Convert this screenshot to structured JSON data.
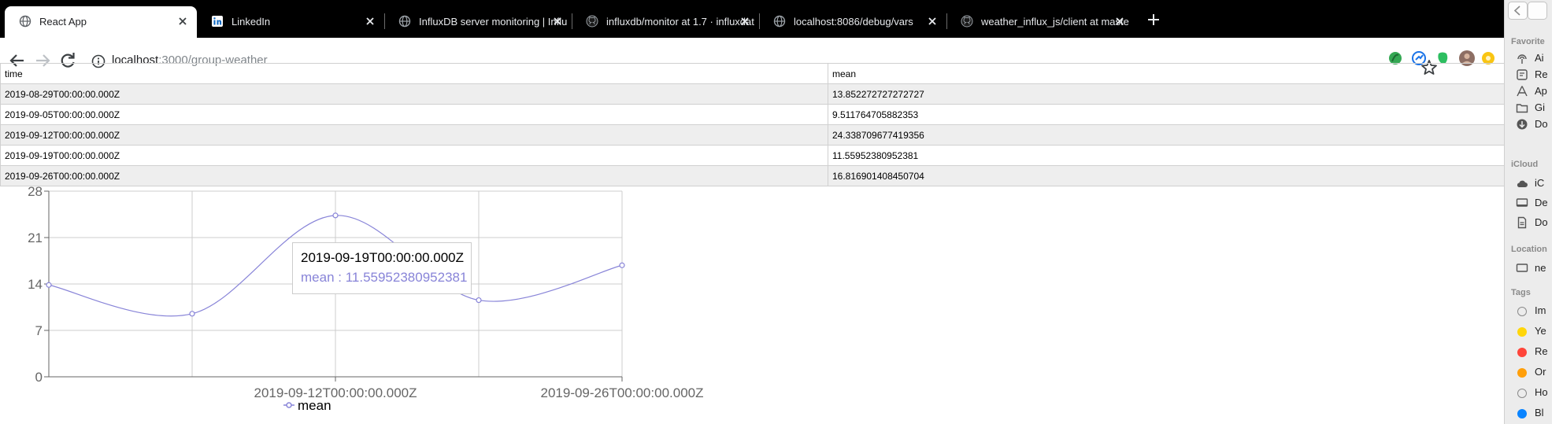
{
  "browser": {
    "tabs": [
      {
        "title": "React App",
        "active": true,
        "icon": "globe-icon"
      },
      {
        "title": "LinkedIn",
        "active": false,
        "icon": "linkedin-icon"
      },
      {
        "title": "InfluxDB server monitoring | Influ",
        "active": false,
        "icon": "globe-icon"
      },
      {
        "title": "influxdb/monitor at 1.7 · influxdat",
        "active": false,
        "icon": "github-icon"
      },
      {
        "title": "localhost:8086/debug/vars",
        "active": false,
        "icon": "globe-icon"
      },
      {
        "title": "weather_influx_js/client at maste",
        "active": false,
        "icon": "github-icon"
      }
    ],
    "url": {
      "host": "localhost",
      "path": ":3000/group-weather"
    }
  },
  "table": {
    "headers": [
      "time",
      "mean"
    ],
    "rows": [
      [
        "2019-08-29T00:00:00.000Z",
        "13.852272727272727"
      ],
      [
        "2019-09-05T00:00:00.000Z",
        "9.511764705882353"
      ],
      [
        "2019-09-12T00:00:00.000Z",
        "24.338709677419356"
      ],
      [
        "2019-09-19T00:00:00.000Z",
        "11.55952380952381"
      ],
      [
        "2019-09-26T00:00:00.000Z",
        "16.816901408450704"
      ]
    ]
  },
  "chart_data": {
    "type": "line",
    "x": [
      "2019-08-29T00:00:00.000Z",
      "2019-09-05T00:00:00.000Z",
      "2019-09-12T00:00:00.000Z",
      "2019-09-19T00:00:00.000Z",
      "2019-09-26T00:00:00.000Z"
    ],
    "series": [
      {
        "name": "mean",
        "values": [
          13.852272727272727,
          9.511764705882353,
          24.338709677419356,
          11.55952380952381,
          16.816901408450704
        ],
        "color": "#8884d8"
      }
    ],
    "xticks": [
      "2019-09-12T00:00:00.000Z",
      "2019-09-26T00:00:00.000Z"
    ],
    "yticks": [
      0,
      7,
      14,
      21,
      28
    ],
    "ylim": [
      0,
      28
    ],
    "grid": true,
    "legend": "bottom"
  },
  "tooltip": {
    "label": "2019-09-19T00:00:00.000Z",
    "value": "mean : 11.55952380952381",
    "color": "#8884d8"
  },
  "legend": {
    "label": "mean"
  },
  "finder": {
    "favorites_heading": "Favorite",
    "favorites": [
      {
        "label": "Ai",
        "icon": "airdrop-icon"
      },
      {
        "label": "Re",
        "icon": "recents-icon"
      },
      {
        "label": "Ap",
        "icon": "applications-icon"
      },
      {
        "label": "Gi",
        "icon": "folder-icon"
      },
      {
        "label": "Do",
        "icon": "downloads-icon"
      }
    ],
    "icloud_heading": "iCloud",
    "icloud": [
      {
        "label": "iC",
        "icon": "cloud-icon"
      },
      {
        "label": "De",
        "icon": "desktop-icon"
      },
      {
        "label": "Do",
        "icon": "document-icon"
      }
    ],
    "locations_heading": "Location",
    "locations": [
      {
        "label": "ne",
        "icon": "computer-icon"
      }
    ],
    "tags_heading": "Tags",
    "tags": [
      {
        "label": "Im",
        "color": "#ffffff"
      },
      {
        "label": "Ye",
        "color": "#ffd60a"
      },
      {
        "label": "Re",
        "color": "#ff453a"
      },
      {
        "label": "Or",
        "color": "#ff9f0a"
      },
      {
        "label": "Ho",
        "color": "#ffffff"
      },
      {
        "label": "Bl",
        "color": "#0a84ff"
      }
    ]
  }
}
